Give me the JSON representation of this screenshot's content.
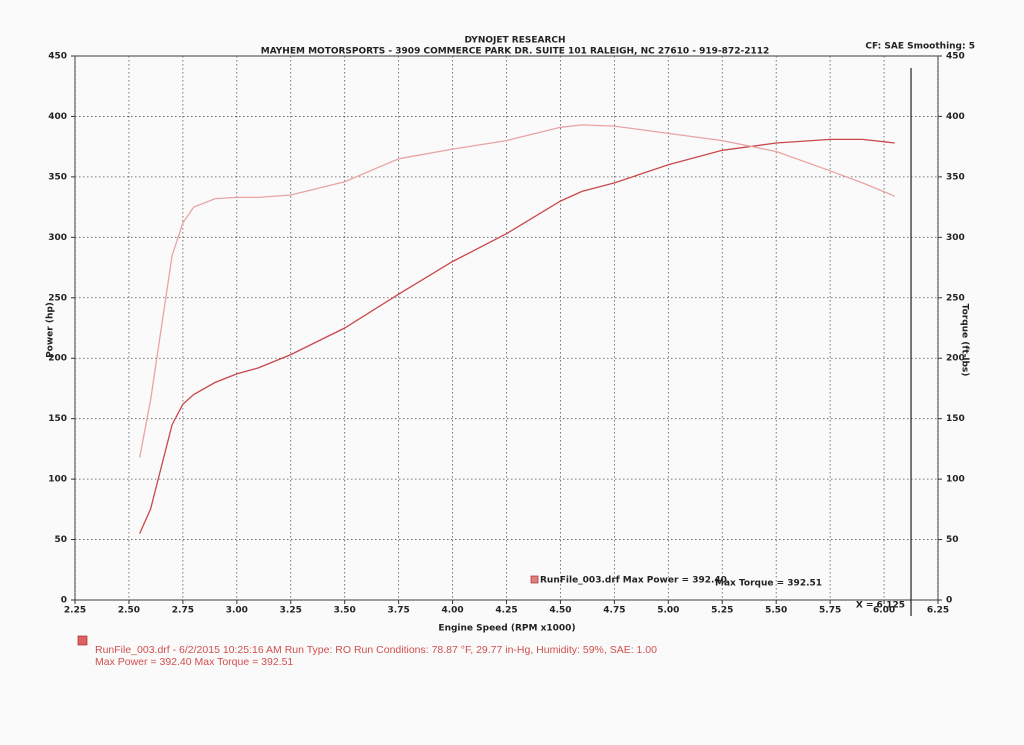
{
  "chart_data": {
    "type": "line",
    "title": "DYNOJET RESEARCH",
    "subtitle": "MAYHEM MOTORSPORTS - 3909 COMMERCE PARK DR. SUITE 101 RALEIGH, NC 27610 - 919-872-2112",
    "settings_text": "CF: SAE  Smoothing: 5",
    "xlabel": "Engine Speed (RPM x1000)",
    "ylabel": "Power (hp)",
    "y2label": "Torque (ft-lbs)",
    "legend_text": "RunFile_003.drf Max Power = 392.40",
    "legend_text2": "Max Torque = 392.51",
    "cursor": {
      "value": 6.125,
      "label": "X = 6.125"
    },
    "footer": [
      "RunFile_003.drf - 6/2/2015 10:25:16 AM  Run Type: RO  Run Conditions: 78.87 °F, 29.77 in-Hg,  Humidity: 59%, SAE: 1.00",
      "Max Power = 392.40  Max Torque = 392.51"
    ],
    "grid": true,
    "xlim": [
      2.25,
      6.25
    ],
    "xticks": [
      2.25,
      {
        "value": 2.5,
        "label": "2.50"
      },
      2.75,
      {
        "value": 3,
        "label": "3.00"
      },
      3.25,
      {
        "value": 3.5,
        "label": "3.50"
      },
      3.75,
      {
        "value": 4,
        "label": "4.00"
      },
      4.25,
      {
        "value": 4.5,
        "label": "4.50"
      },
      4.75,
      {
        "value": 5,
        "label": "5.00"
      },
      5.25,
      {
        "value": 5.5,
        "label": "5.50"
      },
      5.75,
      {
        "value": 6,
        "label": "6.00"
      },
      6.25
    ],
    "ylim": [
      0,
      450
    ],
    "yticks": [
      0,
      50,
      100,
      150,
      200,
      250,
      300,
      350,
      400,
      450
    ],
    "y2lim": [
      0,
      450
    ],
    "y2ticks": [
      0,
      50,
      100,
      150,
      200,
      250,
      300,
      350,
      400,
      450
    ],
    "x": [
      2.55,
      2.6,
      2.65,
      2.7,
      2.75,
      2.8,
      2.9,
      3.0,
      3.1,
      3.25,
      3.5,
      3.75,
      4.0,
      4.25,
      4.5,
      4.6,
      4.75,
      5.0,
      5.25,
      5.5,
      5.75,
      5.9,
      6.05
    ],
    "series": [
      {
        "color": "#c9484a",
        "axis": "y",
        "values": [
          55,
          75,
          110,
          145,
          162,
          170,
          180,
          187,
          192,
          203,
          225,
          253,
          280,
          303,
          330,
          338,
          345,
          360,
          372,
          378,
          381,
          381,
          378
        ]
      },
      {
        "color": "#e8a4a4",
        "axis": "y2",
        "values": [
          118,
          165,
          225,
          285,
          312,
          325,
          332,
          333,
          333,
          335,
          346,
          365,
          373,
          380,
          391,
          393,
          392,
          386,
          380,
          371,
          355,
          345,
          334
        ]
      }
    ]
  }
}
